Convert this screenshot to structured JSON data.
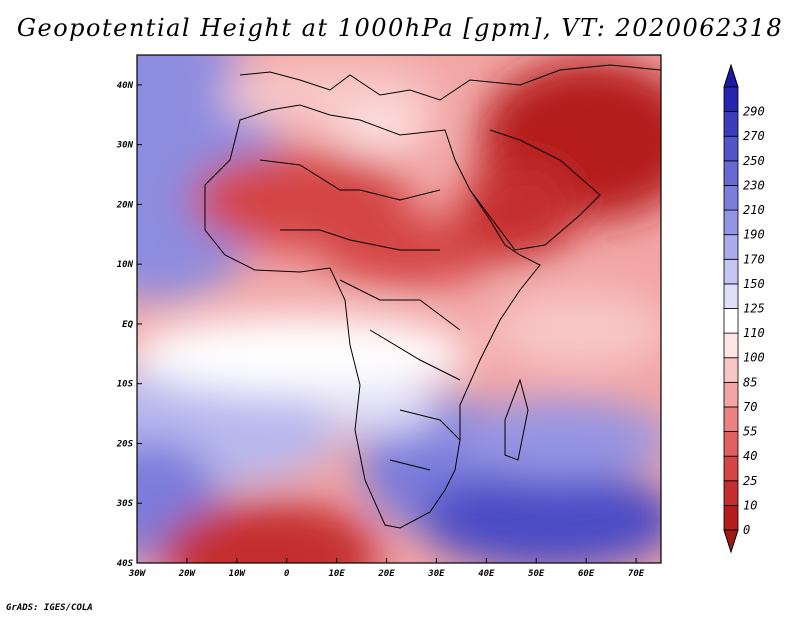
{
  "title": "Geopotential Height at 1000hPa [gpm], VT: 2020062318",
  "credit": "GrADS: IGES/COLA",
  "map": {
    "lon_range": [
      -30,
      75
    ],
    "lat_range": [
      -40,
      45
    ],
    "lon_labels": [
      "30W",
      "20W",
      "10W",
      "0",
      "10E",
      "20E",
      "30E",
      "40E",
      "50E",
      "60E",
      "70E"
    ],
    "lat_labels": [
      "40S",
      "30S",
      "20S",
      "10S",
      "EQ",
      "10N",
      "20N",
      "30N",
      "40N"
    ]
  },
  "colorbar": {
    "levels": [
      "0",
      "10",
      "25",
      "40",
      "55",
      "70",
      "85",
      "100",
      "110",
      "125",
      "150",
      "170",
      "190",
      "210",
      "230",
      "250",
      "270",
      "290"
    ],
    "colors": [
      "#b51c1c",
      "#c52e2e",
      "#d44545",
      "#e06060",
      "#ea8282",
      "#f2a5a5",
      "#f8c6c6",
      "#ffe6e6",
      "#ffffff",
      "#dedef8",
      "#c6c6f3",
      "#acacec",
      "#9494e4",
      "#7c7cdb",
      "#6868d3",
      "#5454c8",
      "#3c3cbd",
      "#2626b0"
    ],
    "under_color": "#a01818",
    "over_color": "#1a1aa0"
  }
}
